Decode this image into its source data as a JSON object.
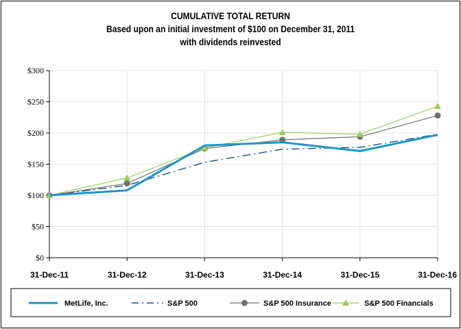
{
  "chart_data": {
    "type": "line",
    "title": "CUMULATIVE TOTAL RETURN",
    "subtitle_lines": [
      "Based upon an initial investment of $100 on December 31, 2011",
      "with dividends reinvested"
    ],
    "categories": [
      "31-Dec-11",
      "31-Dec-12",
      "31-Dec-13",
      "31-Dec-14",
      "31-Dec-15",
      "31-Dec-16"
    ],
    "y_ticks": [
      "$0",
      "$50",
      "$100",
      "$150",
      "$200",
      "$250",
      "$300"
    ],
    "ylim": [
      0,
      300
    ],
    "grid": true,
    "legend_position": "bottom",
    "series": [
      {
        "name": "MetLife, Inc.",
        "values": [
          100,
          108,
          180,
          185,
          171,
          197
        ],
        "color": "#1f95c8",
        "style": "solid-thick"
      },
      {
        "name": "S&P 500",
        "values": [
          100,
          116,
          153,
          174,
          177,
          198
        ],
        "color": "#1b4f7a",
        "style": "dash-dot"
      },
      {
        "name": "S&P 500 Insurance",
        "values": [
          100,
          119,
          175,
          189,
          194,
          228
        ],
        "color": "#707070",
        "style": "circle-markers"
      },
      {
        "name": "S&P 500 Financials",
        "values": [
          100,
          128,
          176,
          201,
          198,
          243
        ],
        "color": "#9ccc5c",
        "style": "triangle-markers"
      }
    ]
  }
}
